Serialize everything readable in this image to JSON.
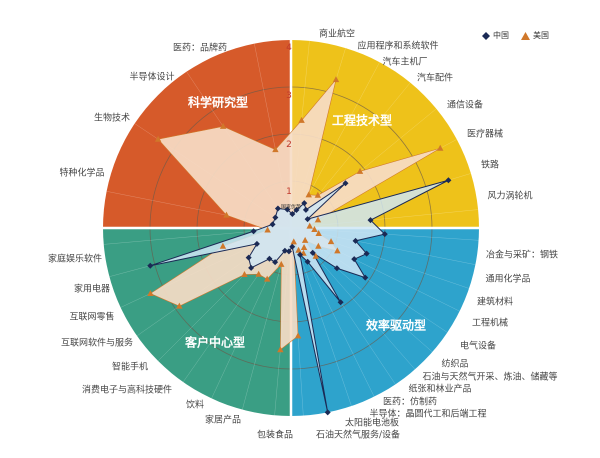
{
  "chart_data": {
    "type": "radar",
    "center_label": "国家优势",
    "rlim": [
      0,
      4
    ],
    "r_ticks": [
      "1",
      "2",
      "3",
      "4"
    ],
    "grid": true,
    "legend_position": "top-right",
    "legend": [
      {
        "name": "中国",
        "marker": "diamond",
        "color": "#1b2a55"
      },
      {
        "name": "美国",
        "marker": "triangle",
        "color": "#d0782a"
      }
    ],
    "quadrants": [
      {
        "title": "工程技术型",
        "color": "#eec21a",
        "categories": [
          "商业航空",
          "应用程序和系统软件",
          "汽车主机厂",
          "汽车配件",
          "通信设备",
          "医疗器械",
          "铁路",
          "风力涡轮机"
        ],
        "china": [
          0.3,
          0.4,
          0.6,
          0.5,
          1.5,
          0.4,
          3.5,
          1.7
        ],
        "usa": [
          2.3,
          3.3,
          0.8,
          0.9,
          1.9,
          3.6,
          0.6,
          0.4
        ]
      },
      {
        "title": "效率驱动型",
        "color": "#2ea3cc",
        "categories": [
          "冶金与采矿：钢铁",
          "通用化学品",
          "建筑材料",
          "工程机械",
          "电气设备",
          "纺织品",
          "石油与天然气开采、炼油、储藏等",
          "纸张和林业产品",
          "医药：仿制药",
          "半导体：晶圆代工和后端工程",
          "太阳能电池板",
          "石油天然气服务/设备"
        ],
        "china": [
          2.0,
          1.4,
          1.7,
          1.5,
          1.9,
          1.3,
          0.7,
          1.9,
          0.8,
          0.6,
          4.0,
          0.4
        ],
        "usa": [
          0.5,
          0.6,
          0.9,
          1.1,
          0.7,
          0.4,
          0.8,
          0.5,
          0.6,
          0.5,
          0.3,
          2.3
        ]
      },
      {
        "title": "客户中心型",
        "color": "#3a9e84",
        "categories": [
          "包装食品",
          "家居产品",
          "饮料",
          "消费电子与高科技硬件",
          "智能手机",
          "互联网软件与服务",
          "互联网零售",
          "家用电器",
          "家庭娱乐软件"
        ],
        "china": [
          0.5,
          0.5,
          0.8,
          0.8,
          1.2,
          1.1,
          0.8,
          3.1,
          0.8
        ],
        "usa": [
          2.6,
          0.8,
          1.2,
          1.2,
          1.4,
          2.9,
          3.3,
          1.5,
          0.5
        ]
      },
      {
        "title": "科学研究型",
        "color": "#d65a2a",
        "categories": [
          "特种化学品",
          "生物技术",
          "半导体设计",
          "医药：品牌药"
        ],
        "china": [
          0.4,
          0.4,
          0.5,
          0.4
        ],
        "usa": [
          1.4,
          3.4,
          2.6,
          1.7
        ]
      }
    ]
  }
}
